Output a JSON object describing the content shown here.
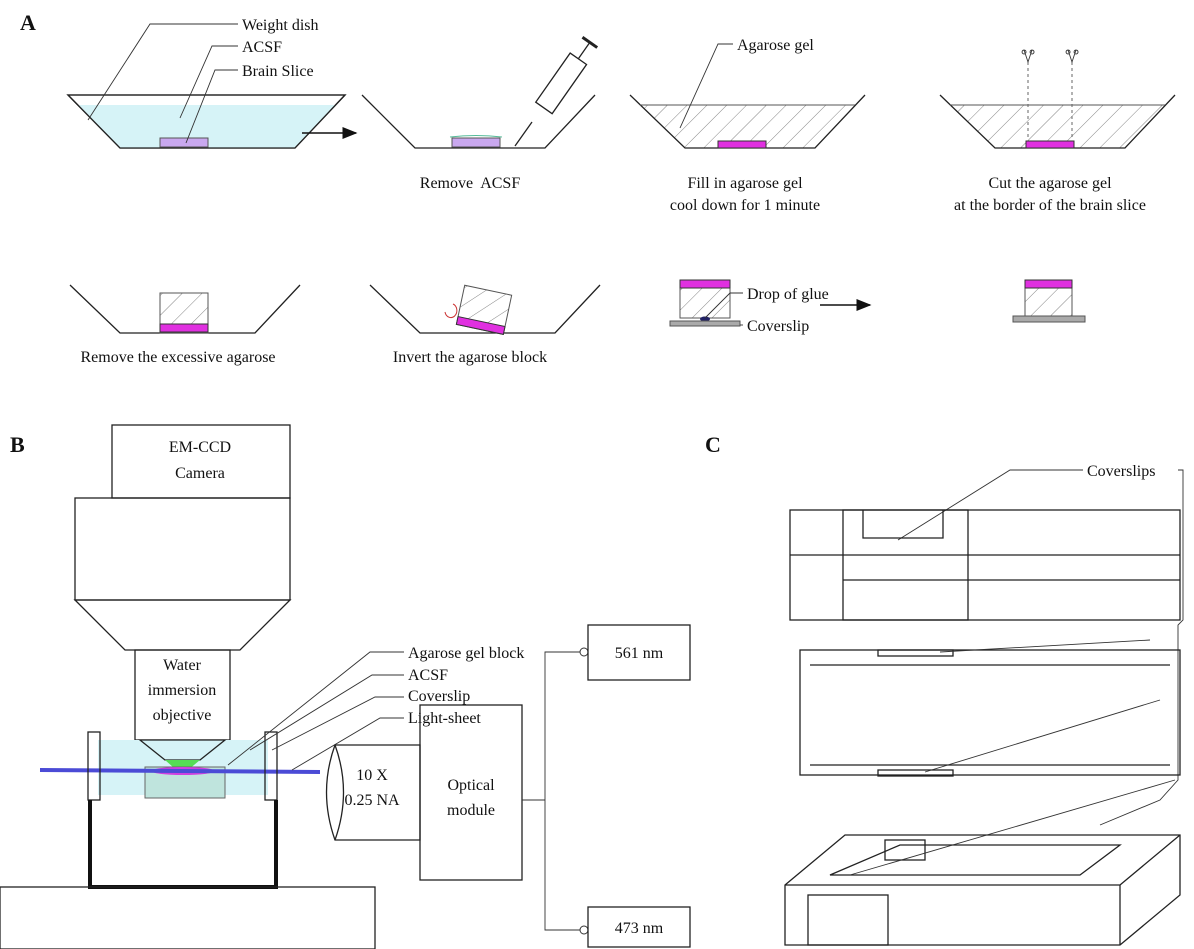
{
  "panel_a": {
    "label": "A",
    "weight_dish": "Weight dish",
    "acsf": "ACSF",
    "brain_slice": "Brain Slice",
    "agarose_gel": "Agarose gel",
    "drop_of_glue": "Drop of glue",
    "coverslip": "Coverslip",
    "captions": {
      "remove_acsf": "Remove  ACSF",
      "fill": [
        "Fill in agarose gel",
        "cool down for 1 minute"
      ],
      "cut": [
        "Cut the agarose gel",
        "at the border of the brain slice"
      ],
      "remove_excess": "Remove the excessive agarose",
      "invert": "Invert the agarose block"
    }
  },
  "panel_b": {
    "label": "B",
    "camera": [
      "EM-CCD",
      "Camera"
    ],
    "objective": [
      "Water",
      "immersion",
      "objective"
    ],
    "callouts": [
      "Agarose gel block",
      "ACSF",
      "Coverslip",
      "Light-sheet"
    ],
    "lens": [
      "10 X",
      "0.25 NA"
    ],
    "module": [
      "Optical",
      "module"
    ],
    "lasers": [
      "561 nm",
      "473 nm"
    ]
  },
  "panel_c": {
    "label": "C",
    "coverslips": "Coverslips"
  }
}
